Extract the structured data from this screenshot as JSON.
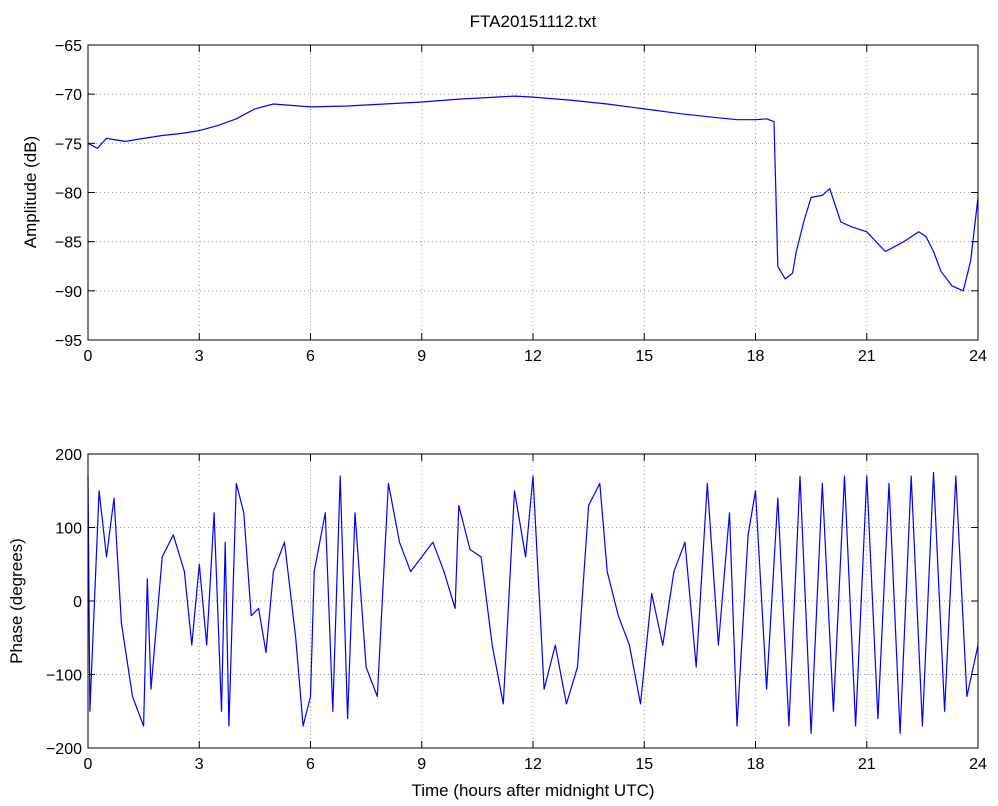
{
  "chart_data": [
    {
      "type": "line",
      "title": "FTA20151112.txt",
      "xlabel": "",
      "ylabel": "Amplitude (dB)",
      "xlim": [
        0,
        24
      ],
      "ylim": [
        -95,
        -65
      ],
      "xticks": [
        "0",
        "3",
        "6",
        "9",
        "12",
        "15",
        "18",
        "21",
        "24"
      ],
      "yticks": [
        "−65",
        "−70",
        "−75",
        "−80",
        "−85",
        "−90",
        "−95"
      ],
      "grid": true,
      "line_color": "#0000ff",
      "series": [
        {
          "x": [
            0,
            0.25,
            0.5,
            1,
            1.5,
            2,
            2.5,
            3,
            3.5,
            4,
            4.5,
            5,
            6,
            7,
            8,
            9,
            10,
            11,
            11.5,
            12,
            13,
            14,
            15,
            16,
            17,
            17.5,
            18,
            18.3,
            18.5,
            18.6,
            18.8,
            19,
            19.1,
            19.3,
            19.5,
            19.8,
            20,
            20.3,
            20.6,
            21,
            21.5,
            22,
            22.4,
            22.6,
            22.8,
            23,
            23.3,
            23.6,
            23.8,
            24
          ],
          "y": [
            -75,
            -75.5,
            -74.5,
            -74.8,
            -74.5,
            -74.2,
            -74,
            -73.7,
            -73.2,
            -72.5,
            -71.5,
            -71,
            -71.3,
            -71.2,
            -71,
            -70.8,
            -70.5,
            -70.3,
            -70.2,
            -70.3,
            -70.6,
            -71,
            -71.5,
            -72,
            -72.4,
            -72.6,
            -72.6,
            -72.5,
            -72.8,
            -87.5,
            -88.8,
            -88.2,
            -86,
            -83,
            -80.5,
            -80.3,
            -79.6,
            -83,
            -83.5,
            -84,
            -86,
            -85,
            -84,
            -84.5,
            -86,
            -88,
            -89.5,
            -90,
            -87,
            -80.5
          ]
        }
      ]
    },
    {
      "type": "line",
      "title": "",
      "xlabel": "Time (hours after midnight UTC)",
      "ylabel": "Phase (degrees)",
      "xlim": [
        0,
        24
      ],
      "ylim": [
        -200,
        200
      ],
      "xticks": [
        "0",
        "3",
        "6",
        "9",
        "12",
        "15",
        "18",
        "21",
        "24"
      ],
      "yticks": [
        "200",
        "100",
        "0",
        "−100",
        "−200"
      ],
      "grid": true,
      "line_color": "#0000ff",
      "series": [
        {
          "x": [
            0,
            0.05,
            0.1,
            0.3,
            0.5,
            0.7,
            0.9,
            1.2,
            1.5,
            1.6,
            1.7,
            2,
            2.3,
            2.6,
            2.8,
            3,
            3.2,
            3.4,
            3.6,
            3.7,
            3.8,
            4,
            4.2,
            4.4,
            4.6,
            4.8,
            5,
            5.3,
            5.6,
            5.8,
            6,
            6.1,
            6.4,
            6.6,
            6.8,
            7,
            7.2,
            7.5,
            7.8,
            8.1,
            8.4,
            8.7,
            9,
            9.3,
            9.6,
            9.9,
            10,
            10.3,
            10.6,
            10.9,
            11.2,
            11.5,
            11.8,
            12,
            12.3,
            12.6,
            12.9,
            13.2,
            13.5,
            13.8,
            14,
            14.3,
            14.6,
            14.9,
            15.2,
            15.5,
            15.8,
            16.1,
            16.4,
            16.7,
            17,
            17.3,
            17.5,
            17.8,
            18,
            18.3,
            18.6,
            18.9,
            19.2,
            19.5,
            19.8,
            20.1,
            20.4,
            20.7,
            21,
            21.3,
            21.6,
            21.9,
            22.2,
            22.5,
            22.8,
            23.1,
            23.4,
            23.7,
            24
          ],
          "y": [
            170,
            -150,
            -90,
            150,
            60,
            140,
            -30,
            -130,
            -170,
            30,
            -120,
            60,
            90,
            40,
            -60,
            50,
            -60,
            120,
            -150,
            80,
            -170,
            160,
            120,
            -20,
            -10,
            -70,
            40,
            80,
            -50,
            -170,
            -130,
            40,
            120,
            -150,
            170,
            -160,
            120,
            -90,
            -130,
            160,
            80,
            40,
            60,
            80,
            40,
            -10,
            130,
            70,
            60,
            -60,
            -140,
            150,
            60,
            170,
            -120,
            -60,
            -140,
            -90,
            130,
            160,
            40,
            -20,
            -60,
            -140,
            10,
            -60,
            40,
            80,
            -90,
            160,
            -60,
            120,
            -170,
            90,
            150,
            -120,
            140,
            -170,
            170,
            -180,
            160,
            -150,
            170,
            -170,
            170,
            -160,
            160,
            -180,
            170,
            -170,
            175,
            -150,
            170,
            -130,
            -60
          ]
        }
      ]
    }
  ]
}
